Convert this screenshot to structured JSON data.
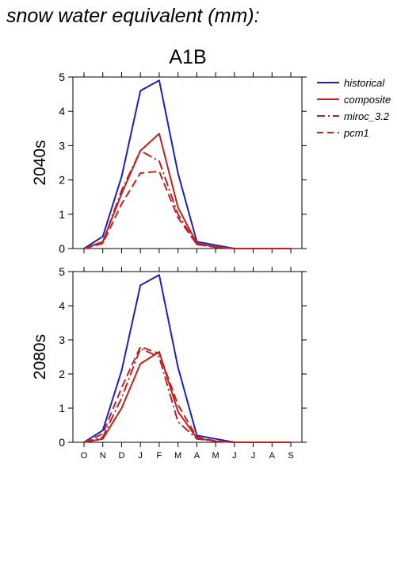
{
  "figure": {
    "title": "snow water equivalent (mm):",
    "scenario": "A1B"
  },
  "legend": [
    {
      "name": "historical",
      "color": "#1f1fbf",
      "dash": "solid"
    },
    {
      "name": "composite",
      "color": "#bf2020",
      "dash": "solid"
    },
    {
      "name": "miroc_3.2",
      "color": "#bf2020",
      "dash": "dashdot"
    },
    {
      "name": "pcm1",
      "color": "#bf2020",
      "dash": "dashed"
    }
  ],
  "chart_data": [
    {
      "type": "line",
      "panel_label": "2040s",
      "categories": [
        "O",
        "N",
        "D",
        "J",
        "F",
        "M",
        "A",
        "M",
        "J",
        "J",
        "A",
        "S"
      ],
      "ylim": [
        0,
        5
      ],
      "yticks": [
        0,
        1,
        2,
        3,
        4,
        5
      ],
      "series": [
        {
          "name": "historical",
          "values": [
            0.0,
            0.35,
            2.1,
            4.6,
            4.9,
            2.2,
            0.2,
            0.1,
            0.0,
            0.0,
            0.0,
            0.0
          ]
        },
        {
          "name": "composite",
          "values": [
            0.0,
            0.2,
            1.6,
            2.85,
            3.35,
            1.2,
            0.15,
            0.05,
            0.0,
            0.0,
            0.0,
            0.0
          ]
        },
        {
          "name": "miroc_3.2",
          "values": [
            0.0,
            0.18,
            1.7,
            2.85,
            2.55,
            1.0,
            0.12,
            0.04,
            0.0,
            0.0,
            0.0,
            0.0
          ]
        },
        {
          "name": "pcm1",
          "values": [
            0.0,
            0.15,
            1.3,
            2.2,
            2.25,
            0.9,
            0.12,
            0.04,
            0.0,
            0.0,
            0.0,
            0.0
          ]
        }
      ]
    },
    {
      "type": "line",
      "panel_label": "2080s",
      "categories": [
        "O",
        "N",
        "D",
        "J",
        "F",
        "M",
        "A",
        "M",
        "J",
        "J",
        "A",
        "S"
      ],
      "ylim": [
        0,
        5
      ],
      "yticks": [
        0,
        1,
        2,
        3,
        4,
        5
      ],
      "series": [
        {
          "name": "historical",
          "values": [
            0.0,
            0.35,
            2.1,
            4.6,
            4.9,
            2.2,
            0.2,
            0.1,
            0.0,
            0.0,
            0.0,
            0.0
          ]
        },
        {
          "name": "composite",
          "values": [
            0.0,
            0.1,
            1.0,
            2.3,
            2.65,
            0.9,
            0.12,
            0.03,
            0.0,
            0.0,
            0.0,
            0.0
          ]
        },
        {
          "name": "miroc_3.2",
          "values": [
            0.0,
            0.15,
            1.3,
            2.75,
            2.5,
            0.6,
            0.1,
            0.03,
            0.0,
            0.0,
            0.0,
            0.0
          ]
        },
        {
          "name": "pcm1",
          "values": [
            0.0,
            0.25,
            1.6,
            2.8,
            2.6,
            1.1,
            0.15,
            0.04,
            0.0,
            0.0,
            0.0,
            0.0
          ]
        }
      ]
    }
  ]
}
